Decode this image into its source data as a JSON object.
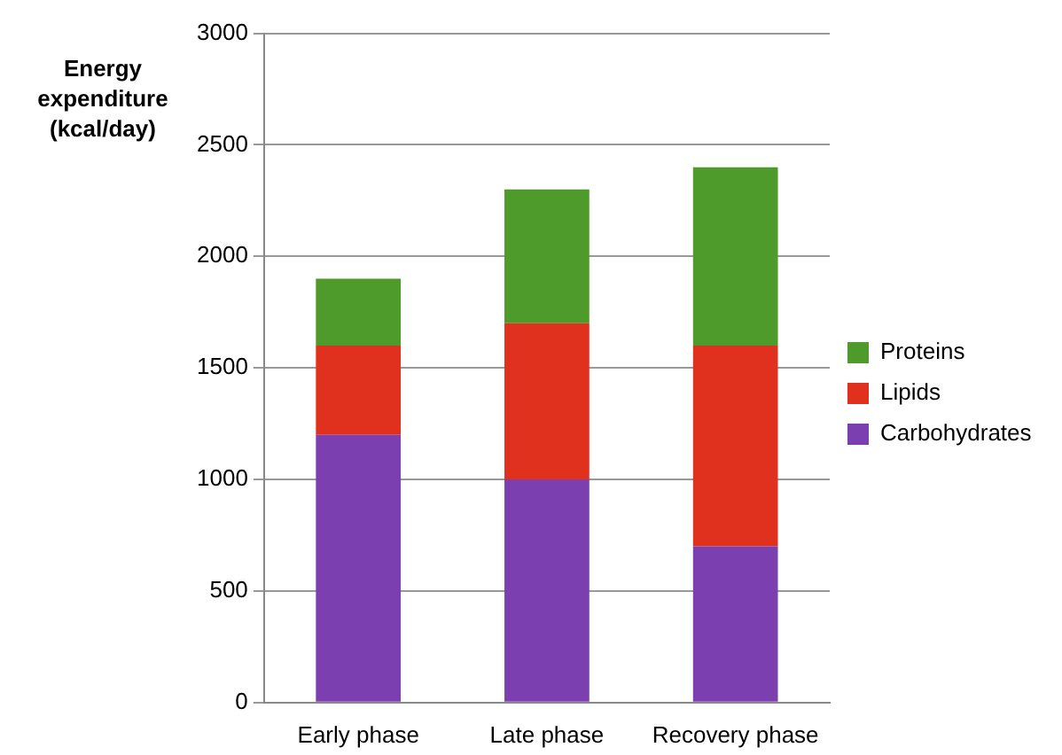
{
  "chart_data": {
    "type": "bar",
    "ylabel": "Energy expenditure (kcal/day)",
    "categories": [
      "Early phase",
      "Late phase",
      "Recovery phase"
    ],
    "stacked": true,
    "legend": "right",
    "grid": "y",
    "ylim": [
      0,
      3000
    ],
    "yticks": [
      0,
      500,
      1000,
      1500,
      2000,
      2500,
      3000
    ],
    "series": [
      {
        "name": "Carbohydrates",
        "color": "#7b3fb0",
        "values": [
          1200,
          1000,
          700
        ]
      },
      {
        "name": "Lipids",
        "color": "#e0301e",
        "values": [
          400,
          700,
          900
        ]
      },
      {
        "name": "Proteins",
        "color": "#4e9a2a",
        "values": [
          300,
          600,
          800
        ]
      }
    ]
  }
}
